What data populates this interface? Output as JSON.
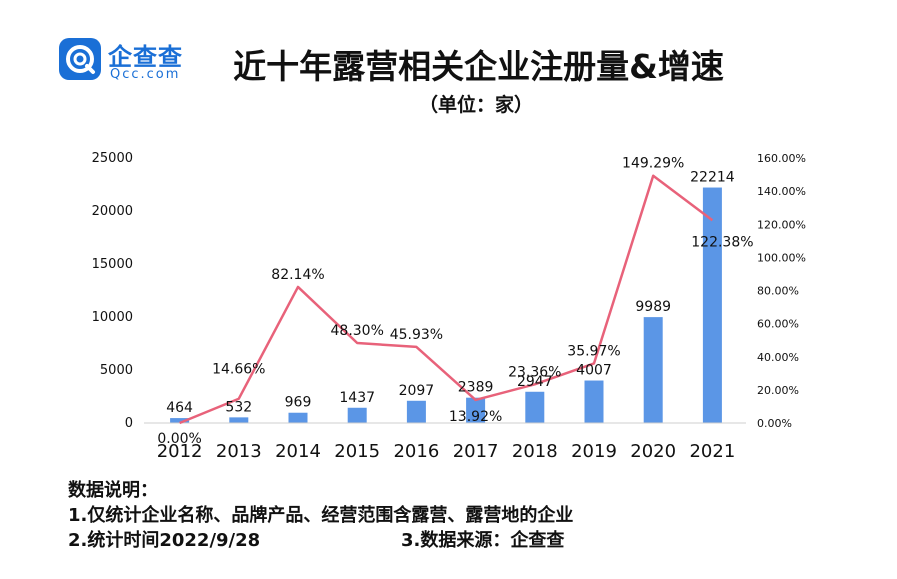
{
  "logo": {
    "cn": "企查查",
    "en": "Qcc.com"
  },
  "title": "近十年露营相关企业注册量&增速",
  "subtitle": "（单位：家）",
  "notes": {
    "heading": "数据说明：",
    "line1": "1.仅统计企业名称、品牌产品、经营范围含露营、露营地的企业",
    "line2": "2.统计时间2022/9/28",
    "line3": "3.数据来源：企查查"
  },
  "colors": {
    "bar": "#5b96e6",
    "line": "#e8627a",
    "logo": "#1a6fd6"
  },
  "chart_data": {
    "type": "bar",
    "categories": [
      "2012",
      "2013",
      "2014",
      "2015",
      "2016",
      "2017",
      "2018",
      "2019",
      "2020",
      "2021"
    ],
    "series": [
      {
        "type": "bar",
        "axis": "left",
        "values": [
          464,
          532,
          969,
          1437,
          2097,
          2389,
          2947,
          4007,
          9989,
          22214
        ],
        "labels": [
          "464",
          "532",
          "969",
          "1437",
          "2097",
          "2389",
          "2947",
          "4007",
          "9989",
          "22214"
        ]
      },
      {
        "type": "line",
        "axis": "right",
        "values": [
          0.0,
          14.66,
          82.14,
          48.3,
          45.93,
          13.92,
          23.36,
          35.97,
          149.29,
          122.38
        ],
        "labels": [
          "0.00%",
          "14.66%",
          "82.14%",
          "48.30%",
          "45.93%",
          "13.92%",
          "23.36%",
          "35.97%",
          "149.29%",
          "122.38%"
        ]
      }
    ],
    "y_left": {
      "min": 0,
      "max": 25000,
      "ticks": [
        "0",
        "5000",
        "10000",
        "15000",
        "20000",
        "25000"
      ]
    },
    "y_right": {
      "min": 0,
      "max": 160,
      "ticks": [
        "0.00%",
        "20.00%",
        "40.00%",
        "60.00%",
        "80.00%",
        "100.00%",
        "120.00%",
        "140.00%",
        "160.00%"
      ]
    },
    "grid": false,
    "legend": "none"
  }
}
